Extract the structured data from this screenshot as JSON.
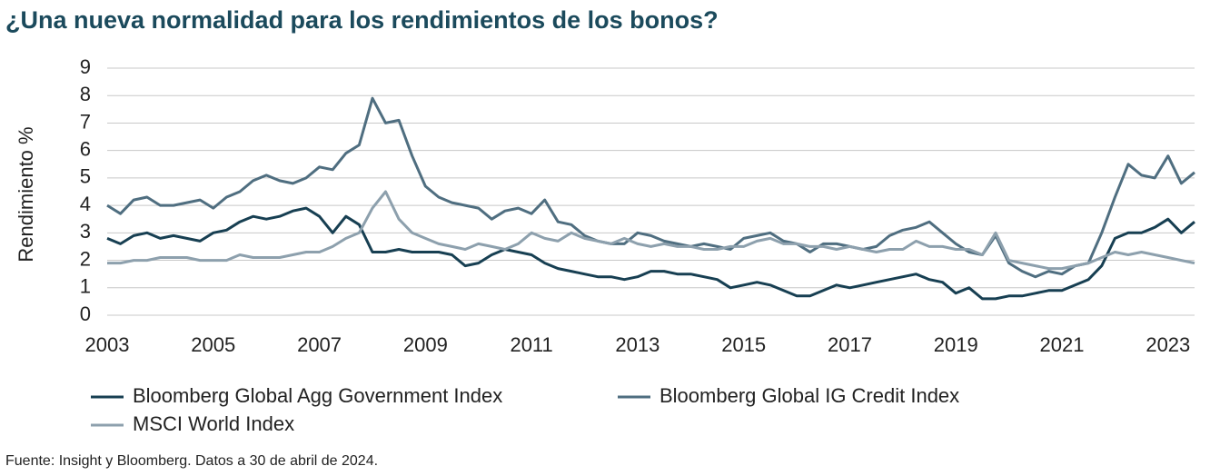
{
  "chart_data": {
    "type": "line",
    "title": "¿Una nueva normalidad para los rendimientos de los bonos?",
    "y_label": "Rendimiento %",
    "source": "Fuente: Insight y Bloomberg. Datos a 30 de abril de 2024.",
    "x": [
      2003,
      2003.25,
      2003.5,
      2003.75,
      2004,
      2004.25,
      2004.5,
      2004.75,
      2005,
      2005.25,
      2005.5,
      2005.75,
      2006,
      2006.25,
      2006.5,
      2006.75,
      2007,
      2007.25,
      2007.5,
      2007.75,
      2008,
      2008.25,
      2008.5,
      2008.75,
      2009,
      2009.25,
      2009.5,
      2009.75,
      2010,
      2010.25,
      2010.5,
      2010.75,
      2011,
      2011.25,
      2011.5,
      2011.75,
      2012,
      2012.25,
      2012.5,
      2012.75,
      2013,
      2013.25,
      2013.5,
      2013.75,
      2014,
      2014.25,
      2014.5,
      2014.75,
      2015,
      2015.25,
      2015.5,
      2015.75,
      2016,
      2016.25,
      2016.5,
      2016.75,
      2017,
      2017.25,
      2017.5,
      2017.75,
      2018,
      2018.25,
      2018.5,
      2018.75,
      2019,
      2019.25,
      2019.5,
      2019.75,
      2020,
      2020.25,
      2020.5,
      2020.75,
      2021,
      2021.25,
      2021.5,
      2021.75,
      2022,
      2022.25,
      2022.5,
      2022.75,
      2023,
      2023.25,
      2023.5
    ],
    "series": [
      {
        "name": "Bloomberg Global Agg Government Index",
        "color": "#173f52",
        "values": [
          2.8,
          2.6,
          2.9,
          3.0,
          2.8,
          2.9,
          2.8,
          2.7,
          3.0,
          3.1,
          3.4,
          3.6,
          3.5,
          3.6,
          3.8,
          3.9,
          3.6,
          3.0,
          3.6,
          3.3,
          2.3,
          2.3,
          2.4,
          2.3,
          2.3,
          2.3,
          2.2,
          1.8,
          1.9,
          2.2,
          2.4,
          2.3,
          2.2,
          1.9,
          1.7,
          1.6,
          1.5,
          1.4,
          1.4,
          1.3,
          1.4,
          1.6,
          1.6,
          1.5,
          1.5,
          1.4,
          1.3,
          1.0,
          1.1,
          1.2,
          1.1,
          0.9,
          0.7,
          0.7,
          0.9,
          1.1,
          1.0,
          1.1,
          1.2,
          1.3,
          1.4,
          1.5,
          1.3,
          1.2,
          0.8,
          1.0,
          0.6,
          0.6,
          0.7,
          0.7,
          0.8,
          0.9,
          0.9,
          1.1,
          1.3,
          1.8,
          2.8,
          3.0,
          3.0,
          3.2,
          3.5,
          3.0,
          3.4
        ]
      },
      {
        "name": "Bloomberg Global IG Credit Index",
        "color": "#4f6e80",
        "values": [
          4.0,
          3.7,
          4.2,
          4.3,
          4.0,
          4.0,
          4.1,
          4.2,
          3.9,
          4.3,
          4.5,
          4.9,
          5.1,
          4.9,
          4.8,
          5.0,
          5.4,
          5.3,
          5.9,
          6.2,
          7.9,
          7.0,
          7.1,
          5.8,
          4.7,
          4.3,
          4.1,
          4.0,
          3.9,
          3.5,
          3.8,
          3.9,
          3.7,
          4.2,
          3.4,
          3.3,
          2.9,
          2.7,
          2.6,
          2.6,
          3.0,
          2.9,
          2.7,
          2.6,
          2.5,
          2.6,
          2.5,
          2.4,
          2.8,
          2.9,
          3.0,
          2.7,
          2.6,
          2.3,
          2.6,
          2.6,
          2.5,
          2.4,
          2.5,
          2.9,
          3.1,
          3.2,
          3.4,
          3.0,
          2.6,
          2.3,
          2.2,
          2.9,
          1.9,
          1.6,
          1.4,
          1.6,
          1.5,
          1.8,
          1.9,
          3.0,
          4.3,
          5.5,
          5.1,
          5.0,
          5.8,
          4.8,
          5.2
        ]
      },
      {
        "name": "MSCI World Index",
        "color": "#8da0ad",
        "values": [
          1.9,
          1.9,
          2.0,
          2.0,
          2.1,
          2.1,
          2.1,
          2.0,
          2.0,
          2.0,
          2.2,
          2.1,
          2.1,
          2.1,
          2.2,
          2.3,
          2.3,
          2.5,
          2.8,
          3.0,
          3.9,
          4.5,
          3.5,
          3.0,
          2.8,
          2.6,
          2.5,
          2.4,
          2.6,
          2.5,
          2.4,
          2.6,
          3.0,
          2.8,
          2.7,
          3.0,
          2.8,
          2.7,
          2.6,
          2.8,
          2.6,
          2.5,
          2.6,
          2.5,
          2.5,
          2.4,
          2.4,
          2.5,
          2.5,
          2.7,
          2.8,
          2.6,
          2.6,
          2.5,
          2.5,
          2.4,
          2.5,
          2.4,
          2.3,
          2.4,
          2.4,
          2.7,
          2.5,
          2.5,
          2.4,
          2.4,
          2.2,
          3.0,
          2.0,
          1.9,
          1.8,
          1.7,
          1.7,
          1.8,
          1.9,
          2.1,
          2.3,
          2.2,
          2.3,
          2.2,
          2.1,
          2.0,
          1.9
        ]
      }
    ],
    "xlim": [
      2003,
      2023.5
    ],
    "xticks": [
      2003,
      2005,
      2007,
      2009,
      2011,
      2013,
      2015,
      2017,
      2019,
      2021,
      2023
    ],
    "ylim": [
      0,
      9
    ],
    "yticks": [
      0,
      1,
      2,
      3,
      4,
      5,
      6,
      7,
      8,
      9
    ],
    "grid": true
  }
}
